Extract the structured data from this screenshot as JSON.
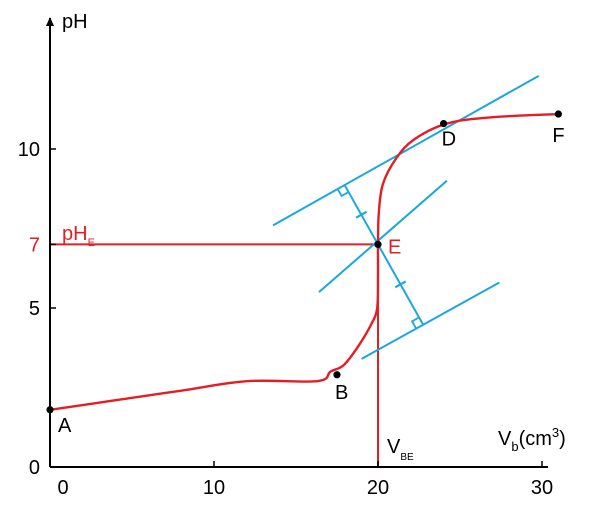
{
  "colors": {
    "axis": "#000000",
    "curve": "#e31e24",
    "tangent": "#1aa7e0",
    "point": "#000000"
  },
  "chart_data": {
    "type": "line",
    "title": "",
    "xlabel": {
      "main": "V",
      "sub": "b",
      "unit_open": "(cm",
      "sup": "3",
      "unit_close": ")"
    },
    "ylabel": "pH",
    "xlim": [
      0,
      33
    ],
    "ylim": [
      0,
      13.5
    ],
    "x_ticks": [
      {
        "value": 0,
        "label": "0"
      },
      {
        "value": 10,
        "label": "10"
      },
      {
        "value": 20,
        "label": "20"
      },
      {
        "value": 30,
        "label": "30"
      }
    ],
    "y_ticks": [
      {
        "value": 0,
        "label": "0"
      },
      {
        "value": 5,
        "label": "5"
      },
      {
        "value": 7,
        "label": "7"
      },
      {
        "value": 10,
        "label": "10"
      }
    ],
    "series": [
      {
        "points": [
          [
            0,
            1.8
          ],
          [
            4,
            2.1
          ],
          [
            8,
            2.4
          ],
          [
            12,
            2.7
          ],
          [
            16.3,
            2.7
          ],
          [
            17.1,
            3.0
          ],
          [
            17.9,
            3.2
          ],
          [
            18.8,
            3.8
          ],
          [
            19.6,
            4.5
          ],
          [
            19.95,
            5.0
          ],
          [
            20.0,
            6.0
          ],
          [
            20.0,
            7.0
          ],
          [
            20.05,
            8.0
          ],
          [
            20.3,
            8.9
          ],
          [
            21.1,
            9.7
          ],
          [
            22.2,
            10.3
          ],
          [
            24.2,
            10.8
          ],
          [
            27,
            11.0
          ],
          [
            31,
            11.1
          ]
        ]
      }
    ],
    "points": [
      {
        "label": "A",
        "x": 0,
        "y": 1.8
      },
      {
        "label": "B",
        "x": 17.5,
        "y": 2.9
      },
      {
        "label": "E",
        "x": 20,
        "y": 7
      },
      {
        "label": "D",
        "x": 24,
        "y": 10.8
      },
      {
        "label": "F",
        "x": 31,
        "y": 11.1
      }
    ],
    "tangent_lines": [
      {
        "x": [
          13.6,
          29.8
        ],
        "y": [
          7.6,
          12.3
        ]
      },
      {
        "x": [
          16.4,
          24.2
        ],
        "y": [
          5.5,
          9.0
        ]
      },
      {
        "x": [
          19.0,
          27.4
        ],
        "y": [
          3.4,
          5.8
        ]
      }
    ],
    "equivalence": {
      "x": 20,
      "y": 7,
      "y_label_main": "pH",
      "y_label_sub": "E",
      "x_label_main": "V",
      "x_label_sub": "BE"
    }
  }
}
